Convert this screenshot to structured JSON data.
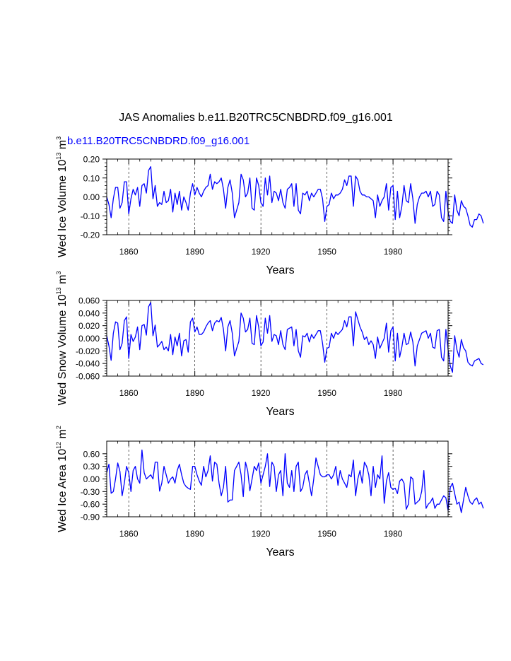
{
  "title": "JAS Anomalies b.e11.B20TRC5CNBDRD.f09_g16.001",
  "subtitle": "b.e11.B20TRC5CNBDRD.f09_g16.001",
  "line_color": "#0000ff",
  "chart_data": [
    {
      "type": "line",
      "name": "ice-volume",
      "ylabel_base": "Wed Ice Volume 10",
      "ylabel_exp": "13",
      "ylabel_unit": " m",
      "ylabel_unit_exp": "3",
      "xlabel": "Years",
      "xlim": [
        1850,
        2005
      ],
      "ylim": [
        -0.2,
        0.2
      ],
      "x_ticks": [
        1860,
        1890,
        1920,
        1950,
        1980
      ],
      "x_tick_labels": [
        "1860",
        "1890",
        "1920",
        "1950",
        "1980"
      ],
      "y_ticks": [
        -0.2,
        -0.1,
        0.0,
        0.1,
        0.2
      ],
      "y_tick_labels": [
        "-0.20",
        "-0.10",
        "0.00",
        "0.10",
        "0.20"
      ],
      "ref_lines_x": [
        1860,
        1890,
        1920,
        1950,
        1980
      ],
      "x_start": 1850,
      "values": [
        0.0,
        -0.04,
        -0.11,
        -0.01,
        0.05,
        0.05,
        -0.06,
        -0.03,
        0.08,
        0.08,
        -0.09,
        -0.01,
        0.04,
        0.01,
        0.05,
        -0.05,
        0.06,
        0.07,
        0.02,
        0.14,
        0.16,
        -0.01,
        0.06,
        -0.05,
        -0.03,
        -0.04,
        0.03,
        -0.03,
        -0.02,
        0.04,
        -0.08,
        0.02,
        -0.04,
        0.03,
        -0.07,
        0.0,
        -0.03,
        -0.07,
        0.02,
        0.07,
        0.01,
        0.05,
        0.02,
        0.0,
        0.03,
        0.05,
        0.06,
        0.12,
        0.04,
        0.08,
        0.07,
        0.08,
        0.1,
        0.04,
        -0.06,
        0.05,
        0.09,
        0.02,
        -0.11,
        -0.07,
        -0.03,
        0.12,
        0.09,
        0.0,
        0.02,
        0.1,
        -0.06,
        -0.07,
        0.1,
        0.06,
        -0.03,
        -0.05,
        0.1,
        0.01,
        0.11,
        -0.03,
        0.03,
        0.02,
        -0.02,
        0.04,
        -0.03,
        -0.06,
        0.04,
        0.05,
        0.07,
        -0.05,
        0.07,
        -0.07,
        -0.09,
        0.02,
        0.01,
        0.03,
        -0.02,
        0.02,
        0.0,
        0.02,
        0.04,
        0.04,
        -0.01,
        -0.13,
        -0.05,
        -0.04,
        0.02,
        -0.01,
        0.01,
        0.01,
        0.02,
        0.04,
        0.09,
        0.06,
        0.11,
        0.11,
        -0.05,
        0.11,
        0.09,
        0.03,
        0.01,
        0.01,
        0.0,
        0.0,
        -0.01,
        -0.02,
        -0.11,
        0.01,
        -0.05,
        -0.02,
        0.0,
        0.07,
        -0.07,
        0.05,
        0.06,
        -0.12,
        0.03,
        -0.11,
        -0.05,
        0.06,
        -0.02,
        -0.03,
        0.07,
        -0.01,
        -0.14,
        -0.04,
        0.0,
        0.02,
        0.02,
        0.03,
        0.0,
        0.03,
        -0.05,
        -0.04,
        0.03,
        0.01,
        -0.11,
        -0.13,
        0.03,
        -0.08,
        -0.13,
        -0.14,
        0.01,
        -0.07,
        -0.1,
        -0.02,
        -0.05,
        -0.06,
        -0.1,
        -0.15,
        -0.16,
        -0.12,
        -0.12,
        -0.09,
        -0.1,
        -0.14
      ]
    },
    {
      "type": "line",
      "name": "snow-volume",
      "ylabel_base": "Wed Snow Volume 10",
      "ylabel_exp": "13",
      "ylabel_unit": " m",
      "ylabel_unit_exp": "3",
      "xlabel": "Years",
      "xlim": [
        1850,
        2005
      ],
      "ylim": [
        -0.06,
        0.06
      ],
      "x_ticks": [
        1860,
        1890,
        1920,
        1950,
        1980
      ],
      "x_tick_labels": [
        "1860",
        "1890",
        "1920",
        "1950",
        "1980"
      ],
      "y_ticks": [
        -0.06,
        -0.04,
        -0.02,
        0.0,
        0.02,
        0.04,
        0.06
      ],
      "y_tick_labels": [
        "-0.060",
        "-0.040",
        "-0.020",
        "0.000",
        "0.020",
        "0.040",
        "0.060"
      ],
      "ref_lines_x": [
        1860,
        1890,
        1920,
        1950,
        1980
      ],
      "x_start": 1850,
      "values": [
        0.004,
        -0.012,
        -0.035,
        0.008,
        0.026,
        0.024,
        -0.018,
        -0.008,
        0.028,
        0.034,
        -0.032,
        0.006,
        -0.005,
        0.002,
        0.018,
        -0.018,
        0.02,
        0.022,
        0.005,
        0.05,
        0.057,
        0.004,
        0.021,
        -0.014,
        -0.01,
        -0.005,
        -0.018,
        -0.014,
        -0.02,
        0.006,
        -0.026,
        0.002,
        -0.012,
        0.008,
        -0.028,
        -0.004,
        -0.002,
        -0.022,
        0.026,
        0.032,
        0.01,
        0.018,
        0.006,
        0.006,
        0.01,
        0.018,
        0.024,
        0.028,
        0.012,
        0.024,
        0.028,
        0.026,
        0.033,
        0.014,
        -0.02,
        0.018,
        0.028,
        0.008,
        -0.028,
        -0.016,
        -0.005,
        0.04,
        0.032,
        0.01,
        0.014,
        0.032,
        -0.008,
        -0.01,
        0.036,
        0.018,
        -0.012,
        -0.006,
        0.032,
        0.008,
        0.036,
        -0.005,
        0.006,
        0.004,
        -0.01,
        0.012,
        -0.01,
        -0.018,
        0.014,
        0.016,
        0.018,
        -0.012,
        0.014,
        -0.02,
        -0.03,
        0.004,
        0.002,
        0.008,
        -0.006,
        0.006,
        0.0,
        0.006,
        0.012,
        0.012,
        -0.008,
        -0.038,
        -0.016,
        -0.014,
        0.008,
        0.0,
        0.01,
        0.006,
        0.01,
        0.014,
        0.028,
        0.018,
        0.034,
        0.034,
        -0.012,
        0.042,
        0.03,
        0.018,
        0.01,
        -0.002,
        0.002,
        -0.01,
        -0.004,
        -0.01,
        -0.032,
        0.002,
        -0.016,
        -0.008,
        0.0,
        0.024,
        -0.022,
        0.012,
        0.018,
        -0.036,
        0.008,
        -0.03,
        -0.014,
        0.008,
        -0.01,
        -0.008,
        0.01,
        -0.006,
        -0.044,
        -0.012,
        -0.002,
        0.008,
        0.01,
        0.012,
        0.0,
        0.008,
        -0.014,
        -0.016,
        0.012,
        0.014,
        -0.03,
        -0.036,
        0.014,
        -0.018,
        -0.044,
        -0.054,
        0.004,
        -0.018,
        -0.03,
        -0.002,
        -0.015,
        -0.02,
        -0.038,
        -0.042,
        -0.044,
        -0.036,
        -0.034,
        -0.032,
        -0.04,
        -0.042
      ]
    },
    {
      "type": "line",
      "name": "ice-area",
      "ylabel_base": "Wed Ice Area 10",
      "ylabel_exp": "12",
      "ylabel_unit": " m",
      "ylabel_unit_exp": "2",
      "xlabel": "Years",
      "xlim": [
        1850,
        2005
      ],
      "ylim": [
        -0.9,
        0.9
      ],
      "x_ticks": [
        1860,
        1890,
        1920,
        1950,
        1980
      ],
      "x_tick_labels": [
        "1860",
        "1890",
        "1920",
        "1950",
        "1980"
      ],
      "y_ticks": [
        -0.9,
        -0.6,
        -0.3,
        0.0,
        0.3,
        0.6
      ],
      "y_tick_labels": [
        "-0.90",
        "-0.60",
        "-0.30",
        "0.00",
        "0.30",
        "0.60"
      ],
      "ref_lines_x": [
        1860,
        1890,
        1920,
        1950,
        1980
      ],
      "x_start": 1850,
      "values": [
        0.15,
        0.35,
        -0.34,
        -0.3,
        0.0,
        0.38,
        0.18,
        -0.4,
        -0.1,
        0.3,
        0.15,
        -0.3,
        0.2,
        0.3,
        0.0,
        -0.1,
        0.69,
        0.15,
        0.0,
        0.05,
        0.1,
        0.0,
        0.4,
        0.4,
        -0.29,
        -0.1,
        0.3,
        0.1,
        -0.1,
        0.0,
        0.05,
        -0.1,
        0.2,
        0.35,
        0.1,
        -0.1,
        -0.18,
        -0.22,
        -0.25,
        0.3,
        0.3,
        0.1,
        -0.05,
        -0.15,
        0.3,
        0.05,
        0.2,
        0.55,
        -0.05,
        0.4,
        0.35,
        -0.1,
        -0.4,
        -0.2,
        0.3,
        -0.55,
        -0.5,
        -0.5,
        0.2,
        0.3,
        0.4,
        0.1,
        -0.42,
        0.4,
        0.2,
        -0.28,
        0.0,
        0.3,
        0.2,
        0.38,
        -0.1,
        0.1,
        0.3,
        0.6,
        -0.18,
        0.4,
        0.3,
        -0.3,
        0.1,
        0.2,
        -0.4,
        0.6,
        -0.1,
        -0.2,
        0.2,
        -0.3,
        0.3,
        0.4,
        -0.3,
        -0.2,
        0.1,
        0.2,
        -0.1,
        -0.4,
        0.0,
        0.5,
        0.3,
        0.1,
        0.05,
        0.05,
        0.1,
        0.1,
        0.0,
        0.1,
        0.3,
        -0.15,
        0.2,
        0.0,
        -0.1,
        -0.2,
        0.1,
        0.05,
        0.45,
        -0.4,
        0.0,
        0.2,
        -0.1,
        0.4,
        0.3,
        0.1,
        -0.4,
        0.3,
        -0.2,
        0.1,
        0.0,
        0.55,
        -0.58,
        -0.05,
        0.15,
        -0.2,
        -0.25,
        -0.22,
        -0.35,
        -0.05,
        0.0,
        -0.1,
        -0.72,
        -0.6,
        0.05,
        0.0,
        -0.6,
        -0.55,
        -0.5,
        -0.3,
        0.2,
        -0.7,
        -0.6,
        -0.55,
        -0.45,
        -0.7,
        -0.6,
        -0.6,
        -0.5,
        -0.4,
        -0.45,
        -0.75,
        -0.2,
        -0.1,
        -0.35,
        -0.6,
        -0.55,
        -0.8,
        -0.5,
        -0.2,
        -0.4,
        -0.55,
        -0.6,
        -0.5,
        -0.45,
        -0.6,
        -0.55,
        -0.7
      ]
    }
  ]
}
